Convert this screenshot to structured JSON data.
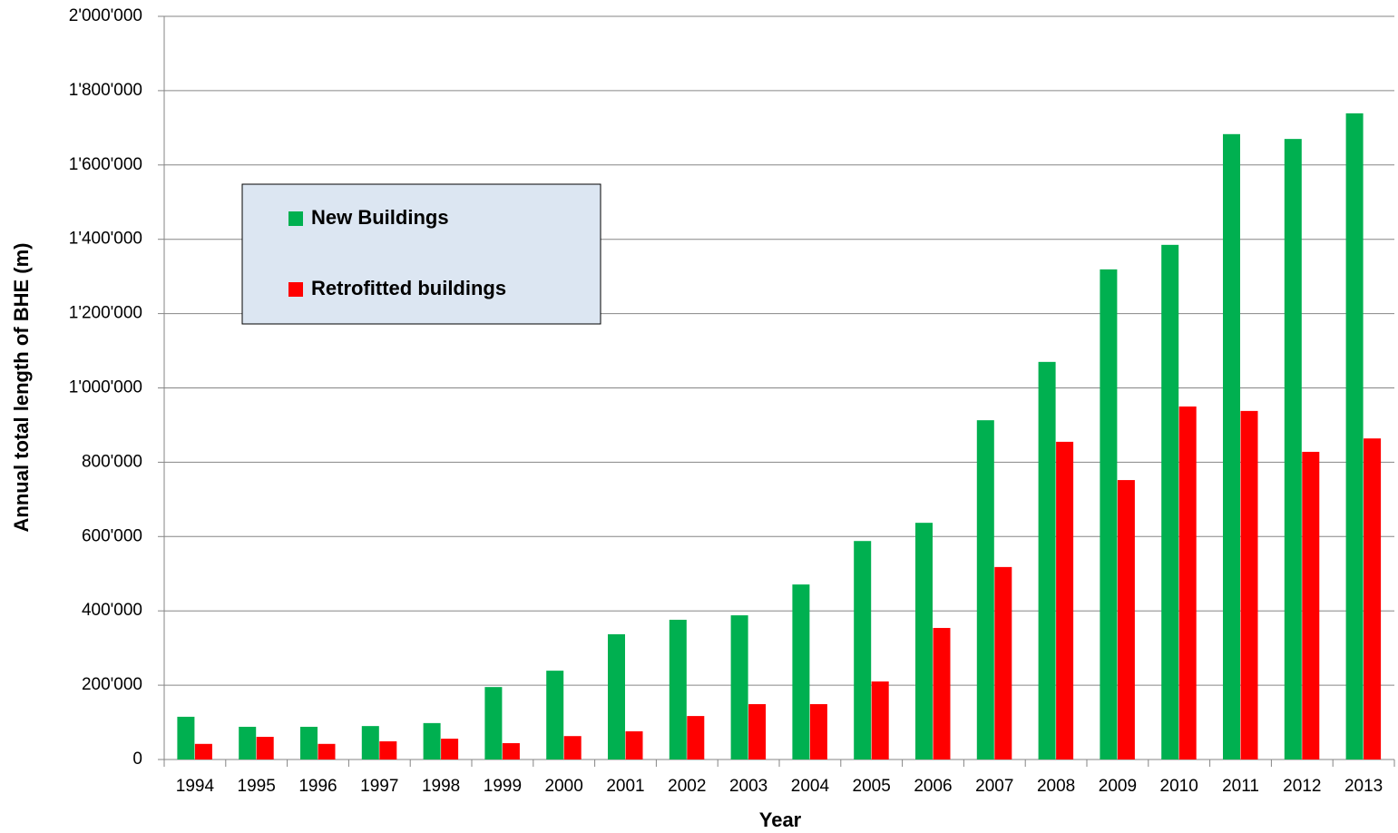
{
  "chart_data": {
    "type": "bar",
    "x_label": "Year",
    "y_label": "Annual total length of BHE (m)",
    "categories": [
      "1994",
      "1995",
      "1996",
      "1997",
      "1998",
      "1999",
      "2000",
      "2001",
      "2002",
      "2003",
      "2004",
      "2005",
      "2006",
      "2007",
      "2008",
      "2009",
      "2010",
      "2011",
      "2012",
      "2013"
    ],
    "series": [
      {
        "name": "New Buildings",
        "color": "#00b050",
        "values": [
          115000,
          88000,
          88000,
          90000,
          98000,
          195000,
          239000,
          337000,
          376000,
          388000,
          471000,
          588000,
          637000,
          913000,
          1070000,
          1319000,
          1385000,
          1683000,
          1670000,
          1739000
        ]
      },
      {
        "name": "Retrofitted buildings",
        "color": "#ff0000",
        "values": [
          42000,
          61000,
          42000,
          49000,
          56000,
          44000,
          63000,
          76000,
          117000,
          149000,
          149000,
          210000,
          354000,
          518000,
          855000,
          752000,
          950000,
          938000,
          828000,
          864000
        ]
      }
    ],
    "ylim": [
      0,
      2000000
    ],
    "yticks": [
      0,
      {
        "value": 200000,
        "label": "200'000"
      },
      {
        "value": 400000,
        "label": "400'000"
      },
      {
        "value": 600000,
        "label": "600'000"
      },
      {
        "value": 800000,
        "label": "800'000"
      },
      {
        "value": 1000000,
        "label": "1'000'000"
      },
      {
        "value": 1200000,
        "label": "1'200'000"
      },
      {
        "value": 1400000,
        "label": "1'400'000"
      },
      {
        "value": 1600000,
        "label": "1'600'000"
      },
      {
        "value": 1800000,
        "label": "1'800'000"
      },
      {
        "value": 2000000,
        "label": "2'000'000"
      }
    ],
    "grid": true,
    "legend": "upper left"
  }
}
